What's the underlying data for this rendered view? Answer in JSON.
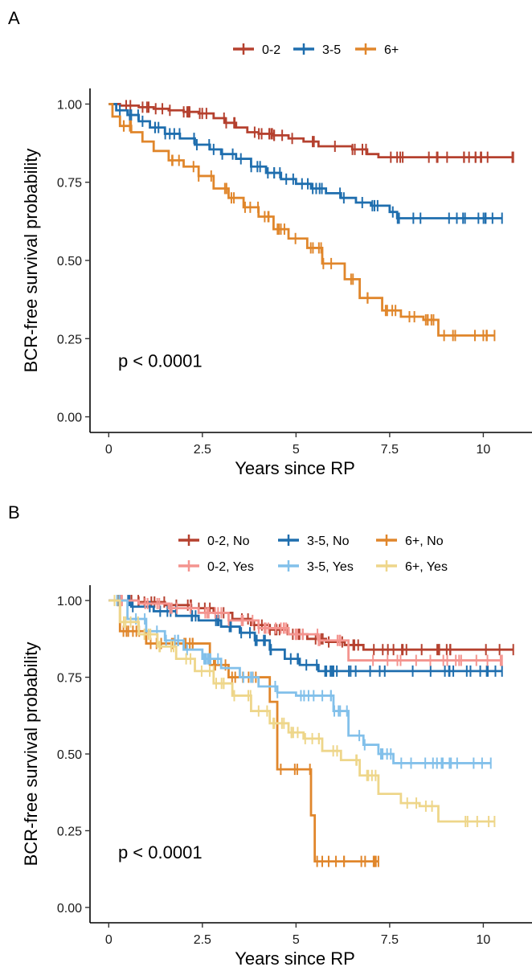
{
  "chart_data": [
    {
      "panel": "A",
      "type": "line",
      "xlabel": "Years since RP",
      "ylabel": "BCR-free survival probability",
      "xlim": [
        -0.5,
        11.3
      ],
      "ylim": [
        -0.05,
        1.05
      ],
      "xticks": [
        0,
        2.5,
        5,
        7.5,
        10
      ],
      "xtick_labels": [
        "0",
        "2.5",
        "5",
        "7.5",
        "10"
      ],
      "yticks": [
        0,
        0.25,
        0.5,
        0.75,
        1
      ],
      "ytick_labels": [
        "0.00",
        "0.25",
        "0.50",
        "0.75",
        "1.00"
      ],
      "annotation": "p < 0.0001",
      "legend_position": "top",
      "grid": false,
      "series": [
        {
          "name": "0-2",
          "color": "#b5412f",
          "censored": true,
          "x": [
            0,
            0.3,
            0.8,
            1.2,
            1.6,
            2.0,
            2.4,
            2.8,
            3.1,
            3.4,
            3.7,
            4.0,
            4.4,
            4.8,
            5.2,
            5.6,
            6.0,
            6.5,
            6.9,
            7.2,
            10.8
          ],
          "y": [
            1.0,
            0.995,
            0.99,
            0.985,
            0.98,
            0.975,
            0.97,
            0.955,
            0.94,
            0.925,
            0.91,
            0.905,
            0.9,
            0.89,
            0.88,
            0.865,
            0.865,
            0.855,
            0.84,
            0.83,
            0.83
          ]
        },
        {
          "name": "3-5",
          "color": "#1f6eae",
          "censored": true,
          "x": [
            0,
            0.2,
            0.5,
            0.8,
            1.1,
            1.5,
            1.9,
            2.3,
            2.7,
            3.0,
            3.4,
            3.8,
            4.2,
            4.6,
            5.0,
            5.4,
            5.8,
            6.2,
            6.6,
            7.0,
            7.5,
            7.7,
            10.5
          ],
          "y": [
            1.0,
            0.98,
            0.965,
            0.945,
            0.925,
            0.905,
            0.89,
            0.87,
            0.855,
            0.84,
            0.825,
            0.8,
            0.78,
            0.76,
            0.745,
            0.73,
            0.715,
            0.7,
            0.685,
            0.675,
            0.655,
            0.635,
            0.635
          ]
        },
        {
          "name": "6+",
          "color": "#e0862b",
          "censored": true,
          "x": [
            0,
            0.1,
            0.3,
            0.6,
            0.9,
            1.2,
            1.6,
            2.0,
            2.4,
            2.8,
            3.2,
            3.6,
            4.0,
            4.4,
            4.8,
            5.3,
            5.7,
            6.3,
            6.7,
            7.3,
            7.8,
            8.4,
            8.8,
            10.3
          ],
          "y": [
            1.0,
            0.96,
            0.93,
            0.91,
            0.88,
            0.85,
            0.82,
            0.8,
            0.77,
            0.73,
            0.7,
            0.67,
            0.64,
            0.6,
            0.57,
            0.54,
            0.49,
            0.44,
            0.38,
            0.34,
            0.32,
            0.31,
            0.26,
            0.26
          ]
        }
      ]
    },
    {
      "panel": "B",
      "type": "line",
      "xlabel": "Years since RP",
      "ylabel": "BCR-free survival probability",
      "xlim": [
        -0.5,
        11.3
      ],
      "ylim": [
        -0.05,
        1.05
      ],
      "xticks": [
        0,
        2.5,
        5,
        7.5,
        10
      ],
      "xtick_labels": [
        "0",
        "2.5",
        "5",
        "7.5",
        "10"
      ],
      "yticks": [
        0,
        0.25,
        0.5,
        0.75,
        1
      ],
      "ytick_labels": [
        "0.00",
        "0.25",
        "0.50",
        "0.75",
        "1.00"
      ],
      "annotation": "p < 0.0001",
      "legend_position": "top",
      "grid": false,
      "series": [
        {
          "name": "0-2, No",
          "color": "#b5412f",
          "censored": true,
          "x": [
            0,
            0.8,
            1.5,
            2.2,
            2.8,
            3.3,
            3.8,
            4.3,
            4.8,
            5.3,
            5.8,
            6.3,
            6.8,
            10.8
          ],
          "y": [
            1.0,
            0.995,
            0.985,
            0.975,
            0.96,
            0.94,
            0.92,
            0.905,
            0.89,
            0.875,
            0.865,
            0.855,
            0.84,
            0.84
          ]
        },
        {
          "name": "3-5, No",
          "color": "#1f6eae",
          "censored": true,
          "x": [
            0,
            0.6,
            1.2,
            1.8,
            2.4,
            3.0,
            3.5,
            3.9,
            4.3,
            4.7,
            5.1,
            5.6,
            10.5
          ],
          "y": [
            1.0,
            0.98,
            0.965,
            0.95,
            0.935,
            0.915,
            0.895,
            0.87,
            0.84,
            0.81,
            0.79,
            0.77,
            0.77
          ]
        },
        {
          "name": "6+, No",
          "color": "#e0862b",
          "censored": true,
          "x": [
            0,
            0.3,
            1.0,
            2.7,
            3.2,
            4.3,
            4.5,
            5.4,
            5.5,
            7.2
          ],
          "y": [
            1.0,
            0.9,
            0.86,
            0.79,
            0.75,
            0.67,
            0.45,
            0.3,
            0.15,
            0.15
          ]
        },
        {
          "name": "0-2, Yes",
          "color": "#f4948f",
          "censored": true,
          "x": [
            0,
            0.8,
            1.6,
            2.4,
            3.2,
            4.0,
            4.8,
            5.6,
            6.4,
            10.5
          ],
          "y": [
            1.0,
            0.99,
            0.975,
            0.96,
            0.935,
            0.91,
            0.89,
            0.87,
            0.805,
            0.805
          ]
        },
        {
          "name": "3-5, Yes",
          "color": "#82c0ea",
          "censored": true,
          "x": [
            0,
            0.5,
            1.0,
            1.5,
            2.0,
            2.5,
            3.0,
            3.5,
            4.0,
            4.5,
            5.0,
            5.5,
            6.0,
            6.4,
            6.8,
            7.2,
            7.6,
            10.2
          ],
          "y": [
            1.0,
            0.94,
            0.9,
            0.87,
            0.84,
            0.81,
            0.78,
            0.75,
            0.72,
            0.7,
            0.69,
            0.69,
            0.64,
            0.56,
            0.53,
            0.5,
            0.47,
            0.47
          ]
        },
        {
          "name": "6+, Yes",
          "color": "#eed68a",
          "censored": true,
          "x": [
            0,
            0.3,
            0.8,
            1.3,
            1.8,
            2.3,
            2.8,
            3.3,
            3.8,
            4.3,
            4.8,
            5.2,
            5.7,
            6.2,
            6.7,
            7.2,
            7.8,
            8.3,
            8.8,
            10.3
          ],
          "y": [
            1.0,
            0.93,
            0.89,
            0.85,
            0.81,
            0.77,
            0.73,
            0.69,
            0.64,
            0.6,
            0.57,
            0.55,
            0.51,
            0.48,
            0.43,
            0.37,
            0.34,
            0.33,
            0.28,
            0.28
          ]
        }
      ]
    }
  ]
}
